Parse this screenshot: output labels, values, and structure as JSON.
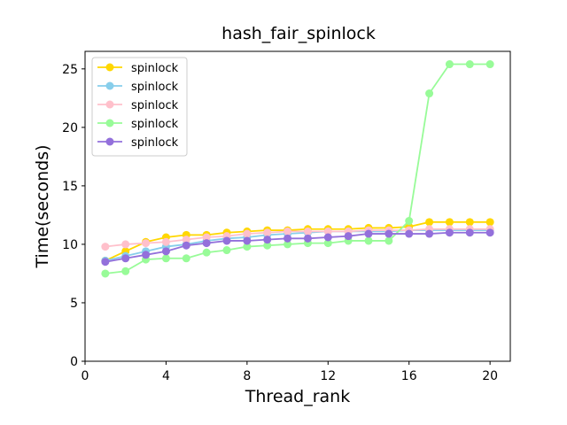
{
  "chart_data": {
    "type": "line",
    "title": "hash_fair_spinlock",
    "xlabel": "Thread_rank",
    "ylabel": "Time(seconds)",
    "xlim": [
      0,
      21
    ],
    "ylim": [
      0,
      26.5
    ],
    "xticks": [
      0,
      4,
      8,
      12,
      16,
      20
    ],
    "yticks": [
      0,
      5,
      10,
      15,
      20,
      25
    ],
    "grid": false,
    "legend_position": "top-left",
    "x": [
      1,
      2,
      3,
      4,
      5,
      6,
      7,
      8,
      9,
      10,
      11,
      12,
      13,
      14,
      15,
      16,
      17,
      18,
      19,
      20
    ],
    "series": [
      {
        "name": "spinlock",
        "color": "#ffd700",
        "values": [
          8.6,
          9.4,
          10.2,
          10.6,
          10.8,
          10.8,
          11.0,
          11.1,
          11.2,
          11.2,
          11.3,
          11.3,
          11.3,
          11.4,
          11.4,
          11.5,
          11.9,
          11.9,
          11.9,
          11.9
        ]
      },
      {
        "name": "spinlock",
        "color": "#87ceeb",
        "values": [
          8.6,
          9.0,
          9.4,
          9.8,
          10.0,
          10.3,
          10.5,
          10.6,
          10.8,
          10.9,
          11.0,
          11.1,
          11.1,
          11.1,
          11.1,
          11.2,
          11.2,
          11.2,
          11.2,
          11.2
        ]
      },
      {
        "name": "spinlock",
        "color": "#ffc0cb",
        "values": [
          9.8,
          10.0,
          10.1,
          10.2,
          10.4,
          10.6,
          10.7,
          10.9,
          11.0,
          11.1,
          11.1,
          11.1,
          11.1,
          11.2,
          11.2,
          11.2,
          11.3,
          11.3,
          11.3,
          11.3
        ]
      },
      {
        "name": "spinlock",
        "color": "#98fb98",
        "values": [
          7.5,
          7.7,
          8.7,
          8.8,
          8.8,
          9.3,
          9.5,
          9.8,
          9.9,
          10.0,
          10.1,
          10.1,
          10.3,
          10.3,
          10.3,
          12.0,
          22.9,
          25.4,
          25.4,
          25.4
        ]
      },
      {
        "name": "spinlock",
        "color": "#9370db",
        "values": [
          8.5,
          8.8,
          9.1,
          9.4,
          9.9,
          10.1,
          10.3,
          10.3,
          10.4,
          10.5,
          10.5,
          10.6,
          10.7,
          10.9,
          10.9,
          10.9,
          10.9,
          11.0,
          11.0,
          11.0
        ]
      }
    ]
  }
}
